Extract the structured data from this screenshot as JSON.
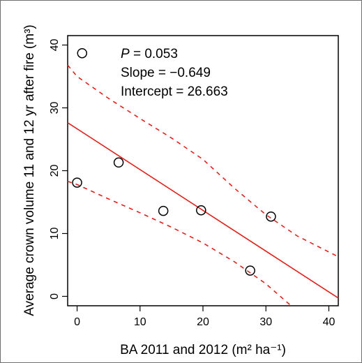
{
  "chart_data": {
    "type": "scatter",
    "title": "",
    "xlabel": "BA 2011 and 2012 (m² ha⁻¹)",
    "ylabel": "Average crown volume 11 and 12 yr after fire (m³)",
    "xlim": [
      -1.5,
      41.5
    ],
    "ylim": [
      -1.5,
      41.5
    ],
    "x_ticks": [
      0,
      10,
      20,
      30,
      40
    ],
    "y_ticks": [
      0,
      10,
      20,
      30,
      40
    ],
    "grid": false,
    "points": [
      {
        "x": 0.8,
        "y": 38.7
      },
      {
        "x": 0.0,
        "y": 18.1
      },
      {
        "x": 6.6,
        "y": 21.3
      },
      {
        "x": 13.7,
        "y": 13.6
      },
      {
        "x": 19.7,
        "y": 13.7
      },
      {
        "x": 27.5,
        "y": 4.1
      },
      {
        "x": 30.8,
        "y": 12.7
      }
    ],
    "fit_line": {
      "slope": -0.649,
      "intercept": 26.663,
      "color": "#e0201b"
    },
    "confidence_band": {
      "upper": [
        [
          -1.5,
          36.8
        ],
        [
          0,
          35.0
        ],
        [
          5,
          31.5
        ],
        [
          10,
          28.3
        ],
        [
          15,
          25.2
        ],
        [
          20,
          21.8
        ],
        [
          25,
          17.2
        ],
        [
          30,
          13.0
        ],
        [
          35,
          9.6
        ],
        [
          41.5,
          6.3
        ]
      ],
      "lower": [
        [
          -1.5,
          18.3
        ],
        [
          0,
          17.8
        ],
        [
          5,
          15.5
        ],
        [
          10,
          13.3
        ],
        [
          15,
          11.0
        ],
        [
          20,
          8.5
        ],
        [
          25,
          5.5
        ],
        [
          30,
          2.0
        ],
        [
          34,
          -1.5
        ]
      ],
      "color": "#e0201b",
      "style": "dashed"
    },
    "annotations": [
      {
        "label_italic": "P",
        "text": " = 0.053"
      },
      {
        "label_italic": "",
        "text": "Slope = −0.649"
      },
      {
        "label_italic": "",
        "text": "Intercept = 26.663"
      }
    ]
  }
}
